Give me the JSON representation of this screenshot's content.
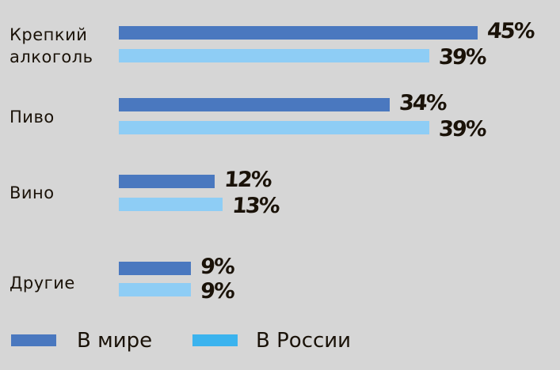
{
  "chart_data": {
    "type": "bar",
    "orientation": "horizontal",
    "categories": [
      [
        "Крепкий",
        "алкоголь"
      ],
      [
        "Пиво"
      ],
      [
        "Вино"
      ],
      [
        "Другие"
      ]
    ],
    "series": [
      {
        "name": "В мире",
        "values": [
          45,
          34,
          12,
          9
        ],
        "labels": [
          "45%",
          "34%",
          "12%",
          "9%"
        ],
        "color": "#4a78bf"
      },
      {
        "name": "В России",
        "values": [
          39,
          39,
          13,
          9
        ],
        "labels": [
          "39%",
          "39%",
          "13%",
          "9%"
        ],
        "color": "#8ecdf5"
      }
    ],
    "legend_colors": [
      "#4a78bf",
      "#3bb3ee"
    ],
    "unit": "%",
    "legend_placement": "bottom-left",
    "grid": false
  }
}
